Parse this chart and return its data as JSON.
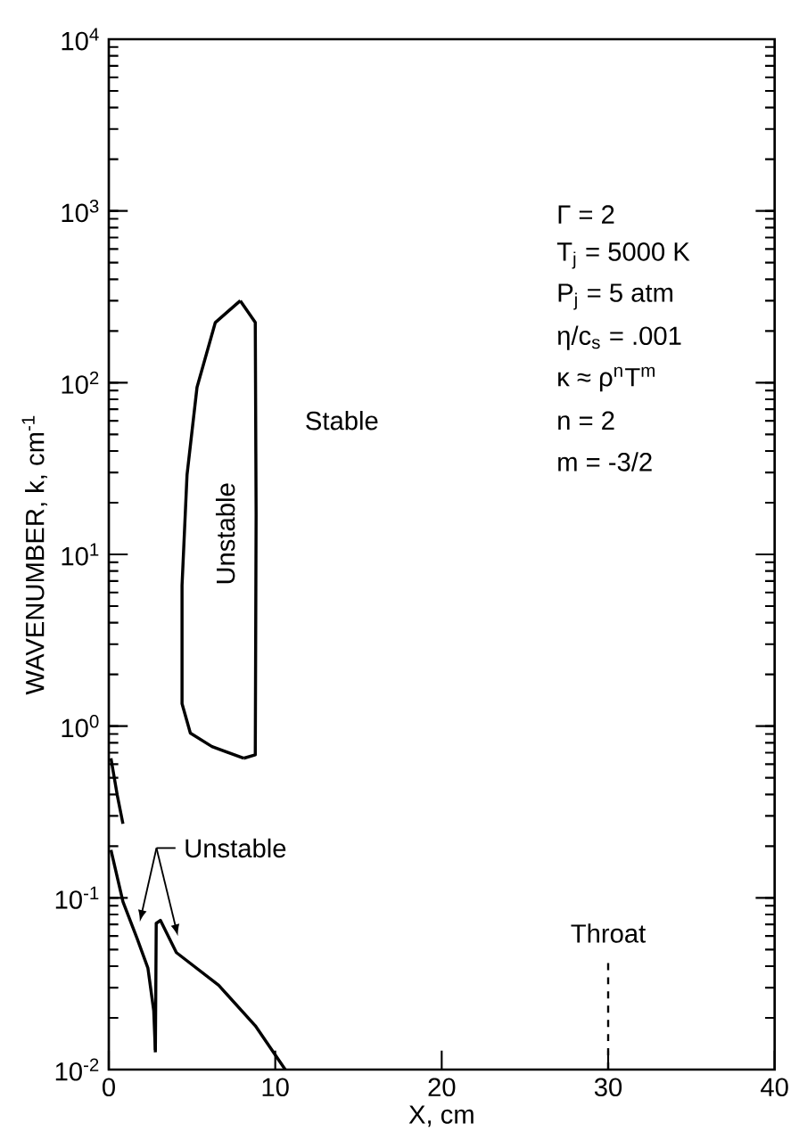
{
  "chart_data": {
    "type": "line",
    "log": "y",
    "xlabel": "X, cm",
    "ylabel": "WAVENUMBER, k, cm$^{-1}$",
    "xlim": [
      0,
      40
    ],
    "xticks": [
      0,
      10,
      20,
      30,
      40
    ],
    "ylim": [
      0.01,
      10000
    ],
    "yticks": [
      {
        "value": 0.01,
        "label": "10$^{-2}$"
      },
      {
        "value": 0.1,
        "label": "10$^{-1}$"
      },
      {
        "value": 1,
        "label": "10$^{0}$"
      },
      {
        "value": 10,
        "label": "10$^{1}$"
      },
      {
        "value": 100,
        "label": "10$^{2}$"
      },
      {
        "value": 1000,
        "label": "10$^{3}$"
      },
      {
        "value": 10000,
        "label": "10$^{4}$"
      }
    ],
    "series": [
      {
        "color": "#000000",
        "x": [
          0.13,
          0.5,
          0.85
        ],
        "values": [
          0.65,
          0.4,
          0.27
        ]
      },
      {
        "color": "#000000",
        "x": [
          0.13,
          0.85,
          1.7,
          2.35,
          2.7,
          2.8
        ],
        "values": [
          0.19,
          0.095,
          0.058,
          0.039,
          0.022,
          0.0126
        ]
      },
      {
        "color": "#000000",
        "x": [
          2.8,
          2.85,
          3.1,
          4.06,
          6.6,
          8.8,
          10.6
        ],
        "values": [
          0.013,
          0.071,
          0.074,
          0.048,
          0.031,
          0.018,
          0.01
        ]
      },
      {
        "color": "#000000",
        "x": [
          7.9,
          8.8,
          8.85,
          8.8,
          8.1
        ],
        "values": [
          300,
          224,
          17,
          0.68,
          0.65
        ]
      },
      {
        "color": "#000000",
        "x": [
          8.1,
          6.2,
          4.9,
          4.4,
          4.4,
          4.7,
          5.3,
          6.4,
          7.9
        ],
        "values": [
          0.65,
          0.76,
          0.91,
          1.35,
          6.6,
          29,
          94,
          224,
          300
        ]
      }
    ],
    "ref_lines": [
      {
        "axis": "x",
        "value": 30,
        "label": "Throat",
        "line_style": "dashed",
        "color": "#000000"
      }
    ],
    "annotations": [
      "Stable",
      "Unstable",
      "Unstable",
      "Γ = 2",
      "T$_{j}$ = 5000 K",
      "P$_{j}$ = 5 atm",
      "η/c$_{s}$ = .001",
      "κ ≈ ρ$^{n}$T$^{m}$",
      "n = 2",
      "m = -3/2"
    ]
  }
}
